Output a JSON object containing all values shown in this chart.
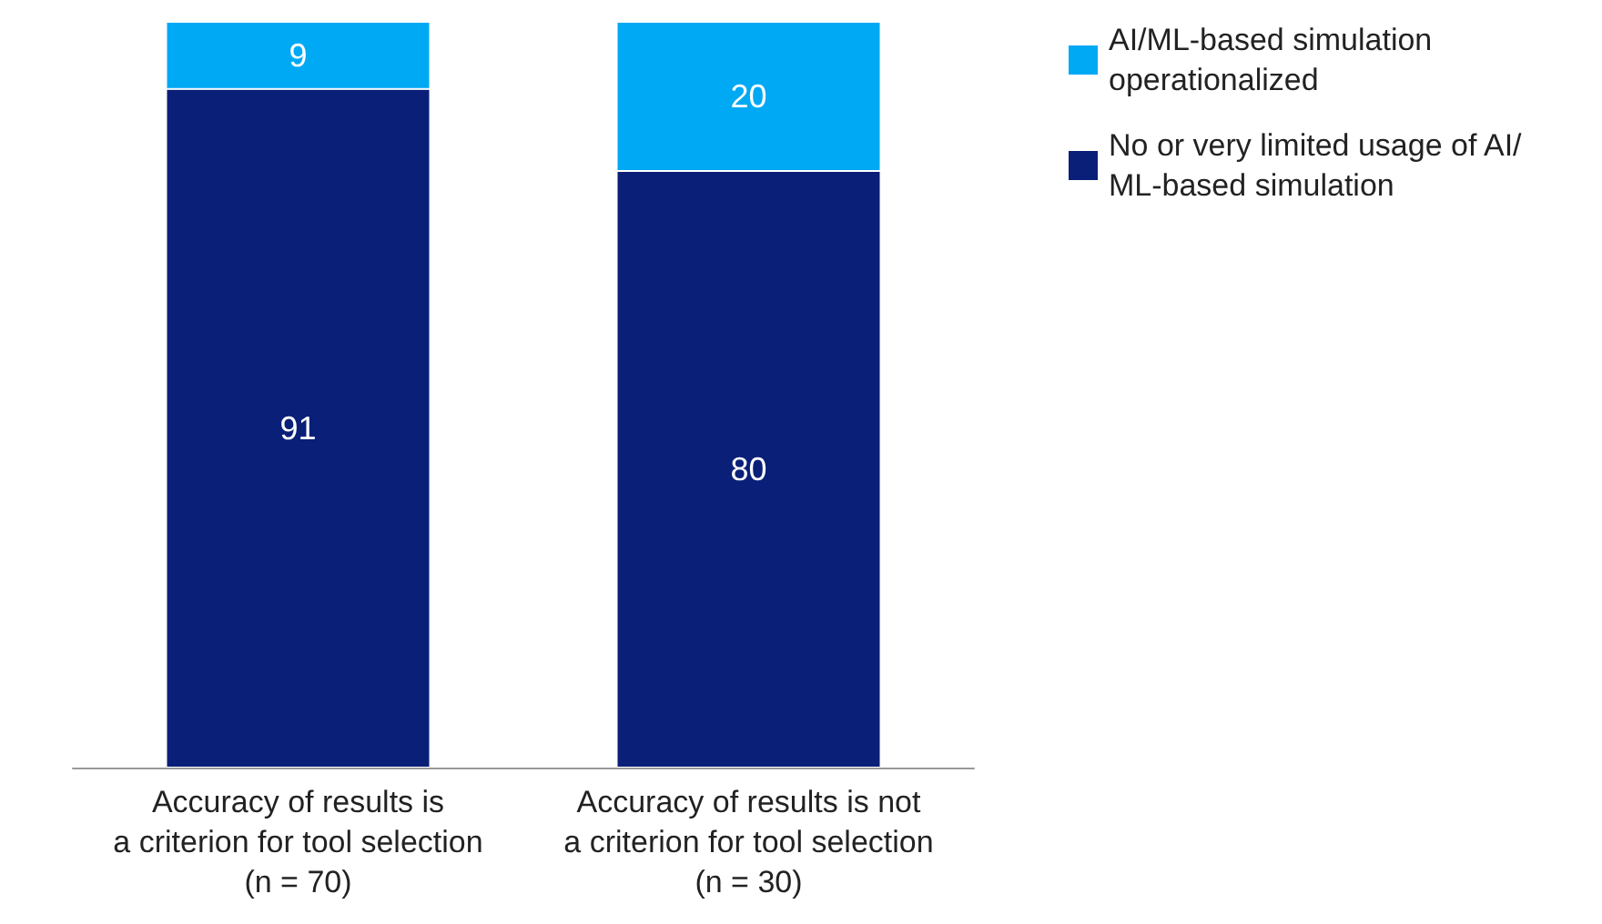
{
  "chart_data": {
    "type": "bar",
    "stacked": true,
    "data_labels": true,
    "legend": "top right",
    "categories": [
      "Accuracy of results is\na criterion for tool selection\n(n = 70)",
      "Accuracy of results is not\na criterion for tool selection\n(n = 30)"
    ],
    "series": [
      {
        "name": "No or very limited usage of AI/ML-based simulation",
        "color": "#0a1f78",
        "values": [
          91,
          80
        ]
      },
      {
        "name": "AI/ML-based simulation operationalized",
        "color": "#00a9f4",
        "values": [
          9,
          20
        ]
      }
    ]
  }
}
